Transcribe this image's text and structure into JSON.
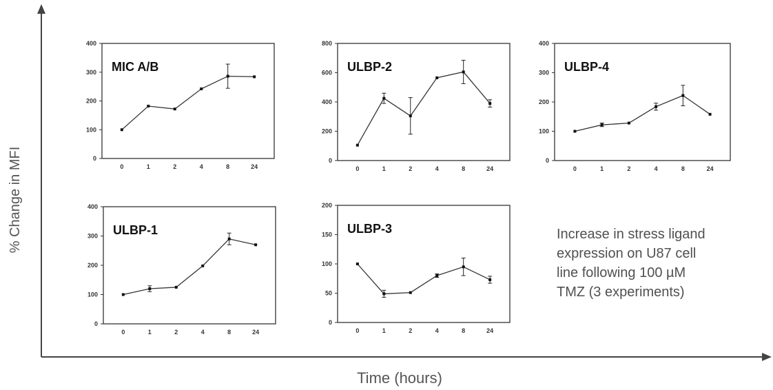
{
  "figure": {
    "xlabel": "Time (hours)",
    "ylabel": "% Change in MFI",
    "note_lines": [
      "Increase in stress ligand",
      "expression on U87 cell",
      "line following 100 µM",
      "TMZ (3 experiments)"
    ]
  },
  "chart_data": [
    {
      "type": "line",
      "title": "MIC A/B",
      "categories": [
        "0",
        "1",
        "2",
        "4",
        "8",
        "24"
      ],
      "values": [
        100,
        182,
        172,
        242,
        286,
        284
      ],
      "error": [
        0,
        0,
        0,
        0,
        42,
        0
      ],
      "ylim": [
        0,
        400
      ],
      "yticks": [
        0,
        100,
        200,
        300,
        400
      ],
      "ytick_labels": [
        "0",
        "100",
        "200",
        "300",
        "400"
      ],
      "color": "#333333"
    },
    {
      "type": "line",
      "title": "ULBP-2",
      "categories": [
        "0",
        "1",
        "2",
        "4",
        "8",
        "24"
      ],
      "values": [
        105,
        425,
        305,
        565,
        605,
        390
      ],
      "error": [
        0,
        35,
        125,
        0,
        80,
        25
      ],
      "ylim": [
        0,
        800
      ],
      "yticks": [
        0,
        200,
        400,
        600,
        800
      ],
      "ytick_labels": [
        "0",
        "200",
        "400",
        "600",
        "800"
      ],
      "color": "#333333"
    },
    {
      "type": "line",
      "title": "ULBP-4",
      "categories": [
        "0",
        "1",
        "2",
        "4",
        "8",
        "24"
      ],
      "values": [
        100,
        122,
        128,
        184,
        222,
        158
      ],
      "error": [
        0,
        6,
        0,
        12,
        35,
        0
      ],
      "ylim": [
        0,
        400
      ],
      "yticks": [
        0,
        100,
        200,
        300,
        400
      ],
      "ytick_labels": [
        "0",
        "100",
        "200",
        "300",
        "400"
      ],
      "color": "#333333"
    },
    {
      "type": "line",
      "title": "ULBP-1",
      "categories": [
        "0",
        "1",
        "2",
        "4",
        "8",
        "24"
      ],
      "values": [
        100,
        120,
        125,
        198,
        290,
        270
      ],
      "error": [
        0,
        10,
        0,
        0,
        20,
        0
      ],
      "ylim": [
        0,
        400
      ],
      "yticks": [
        0,
        100,
        200,
        300,
        400
      ],
      "ytick_labels": [
        "0",
        "100",
        "200",
        "300",
        "400"
      ],
      "color": "#333333"
    },
    {
      "type": "line",
      "title": "ULBP-3",
      "categories": [
        "0",
        "1",
        "2",
        "4",
        "8",
        "24"
      ],
      "values": [
        100,
        49,
        51,
        80,
        95,
        73
      ],
      "error": [
        0,
        6,
        0,
        3,
        15,
        6
      ],
      "ylim": [
        0,
        200
      ],
      "yticks": [
        0,
        50,
        100,
        150,
        200
      ],
      "ytick_labels": [
        "0",
        "50",
        "100",
        "150",
        "200"
      ],
      "color": "#333333"
    }
  ]
}
